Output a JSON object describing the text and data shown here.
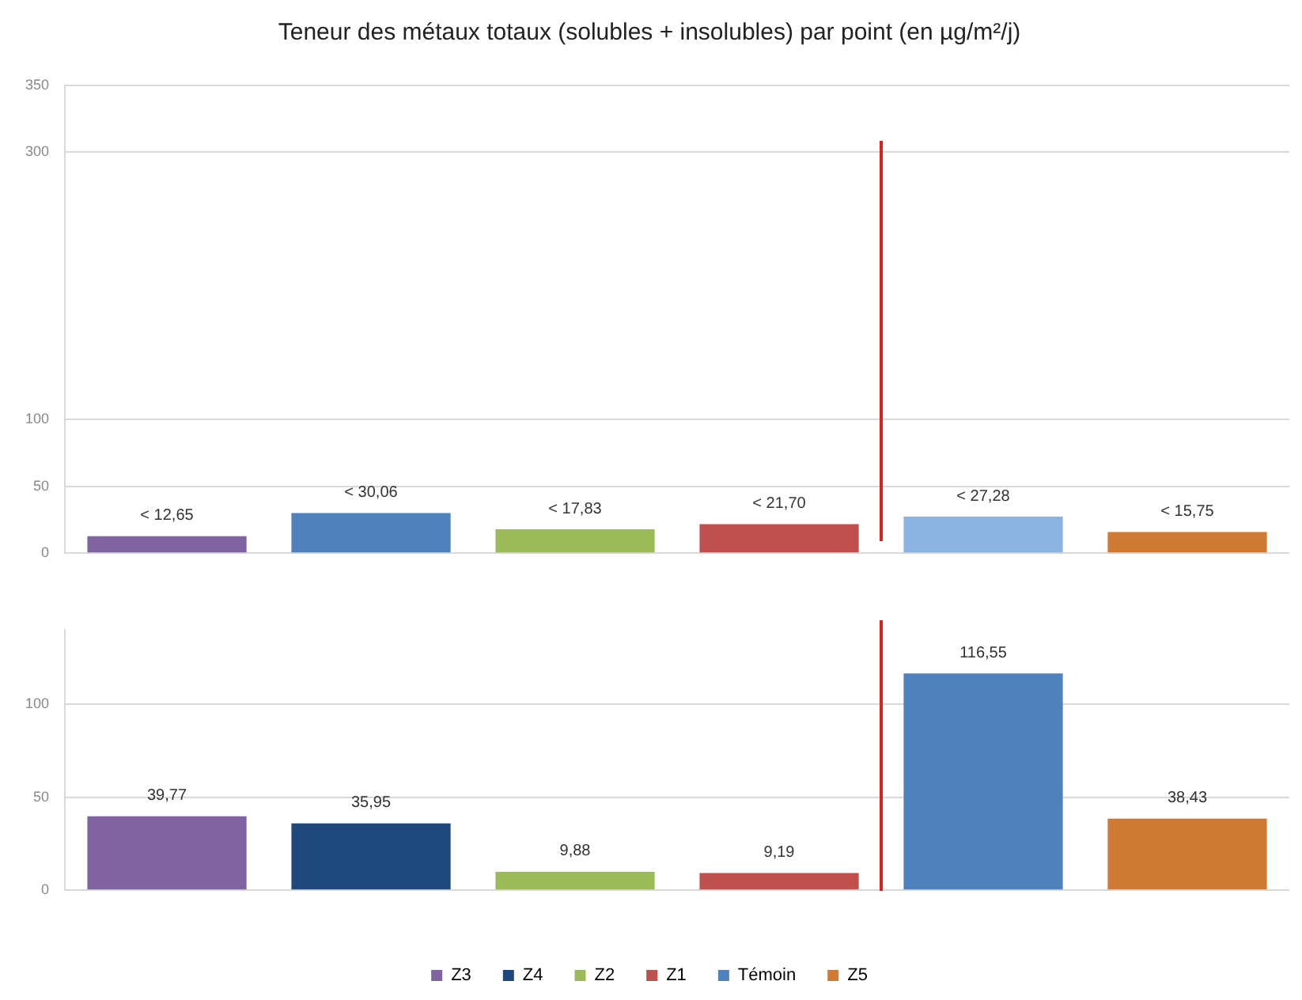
{
  "chart_data": [
    {
      "type": "bar",
      "title": "Teneur des métaux totaux (solubles + insolubles) par point (en µg/m²/j)",
      "categories": [
        null,
        null,
        null,
        null,
        null,
        null
      ],
      "series": [
        {
          "color": "#8064a2",
          "values": [
            12.65,
            null,
            null,
            null,
            null,
            null
          ],
          "value_labels": [
            "< 12,65",
            null,
            null,
            null,
            null,
            null
          ]
        },
        {
          "color": "#4f81bd",
          "values": [
            null,
            30.06,
            null,
            null,
            null,
            null
          ],
          "value_labels": [
            null,
            "< 30,06",
            null,
            null,
            null,
            null
          ]
        },
        {
          "color": "#9bbb59",
          "values": [
            null,
            null,
            17.83,
            null,
            null,
            null
          ],
          "value_labels": [
            null,
            null,
            "< 17,83",
            null,
            null,
            null
          ]
        },
        {
          "color": "#c0504d",
          "values": [
            null,
            null,
            null,
            21.7,
            null,
            null
          ],
          "value_labels": [
            null,
            null,
            null,
            "< 21,70",
            null,
            null
          ]
        },
        {
          "color": "#8db3e2",
          "values": [
            null,
            null,
            null,
            null,
            27.28,
            null
          ],
          "value_labels": [
            null,
            null,
            null,
            null,
            "< 27,28",
            null
          ]
        },
        {
          "color": "#d07b35",
          "values": [
            null,
            null,
            null,
            null,
            null,
            15.75
          ],
          "value_labels": [
            null,
            null,
            null,
            null,
            null,
            "< 15,75"
          ]
        }
      ],
      "ylim": [
        0,
        350
      ],
      "yticks": [
        0,
        50,
        100,
        300,
        350
      ],
      "grid": "y",
      "legend": false
    },
    {
      "type": "bar",
      "categories": [
        null,
        null,
        null,
        null,
        null,
        null
      ],
      "series": [
        {
          "name": "Z3",
          "color": "#8064a2",
          "values": [
            39.77,
            null,
            null,
            null,
            null,
            null
          ],
          "value_labels": [
            "39,77",
            null,
            null,
            null,
            null,
            null
          ]
        },
        {
          "name": "Z4",
          "color": "#1f497d",
          "values": [
            null,
            35.95,
            null,
            null,
            null,
            null
          ],
          "value_labels": [
            null,
            "35,95",
            null,
            null,
            null,
            null
          ]
        },
        {
          "name": "Z2",
          "color": "#9bbb59",
          "values": [
            null,
            null,
            9.88,
            null,
            null,
            null
          ],
          "value_labels": [
            null,
            null,
            "9,88",
            null,
            null,
            null
          ]
        },
        {
          "name": "Z1",
          "color": "#c0504d",
          "values": [
            null,
            null,
            null,
            9.19,
            null,
            null
          ],
          "value_labels": [
            null,
            null,
            null,
            "9,19",
            null,
            null
          ]
        },
        {
          "name": "Témoin",
          "color": "#4f81bd",
          "values": [
            null,
            null,
            null,
            null,
            116.55,
            null
          ],
          "value_labels": [
            null,
            null,
            null,
            null,
            "116,55",
            null
          ]
        },
        {
          "name": "Z5",
          "color": "#d07b35",
          "values": [
            null,
            null,
            null,
            null,
            null,
            38.43
          ],
          "value_labels": [
            null,
            null,
            null,
            null,
            null,
            "38,43"
          ]
        }
      ],
      "ylim": [
        0,
        140
      ],
      "yticks": [
        0,
        50,
        100
      ],
      "grid": "y",
      "legend": "bottom"
    }
  ]
}
